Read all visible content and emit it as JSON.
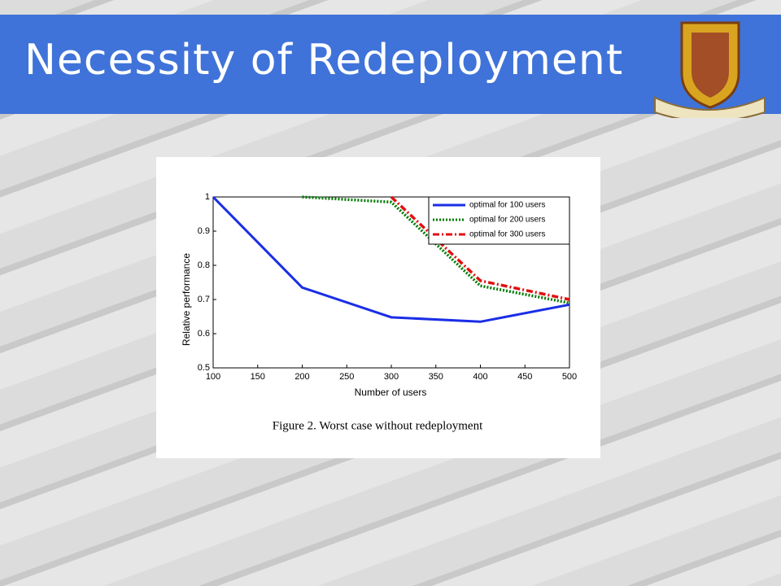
{
  "slide_title": "Necessity of Redeployment",
  "figure_caption": "Figure 2.   Worst case without redeployment",
  "chart_data": {
    "type": "line",
    "x_label": "Number of users",
    "y_label": "Relative performance",
    "x": [
      100,
      200,
      300,
      400,
      500
    ],
    "series": [
      {
        "name": "optimal for 100 users",
        "color": "#1a2ee6",
        "style": "solid",
        "values": [
          1,
          0.735,
          0.648,
          0.635,
          0.685
        ]
      },
      {
        "name": "optimal for 200 users",
        "color": "#007a00",
        "style": "dotted",
        "values": [
          null,
          1,
          0.985,
          0.74,
          0.69
        ]
      },
      {
        "name": "optimal for 300 users",
        "color": "#e01010",
        "style": "dashdot",
        "values": [
          null,
          null,
          1,
          0.755,
          0.7
        ]
      }
    ],
    "xlim": [
      100,
      500
    ],
    "xticks": [
      100,
      150,
      200,
      250,
      300,
      350,
      400,
      450,
      500
    ],
    "ylim": [
      0.5,
      1
    ],
    "yticks": [
      0.5,
      0.6,
      0.7,
      0.8,
      0.9,
      1
    ],
    "legend": "upper right",
    "grid": false
  }
}
